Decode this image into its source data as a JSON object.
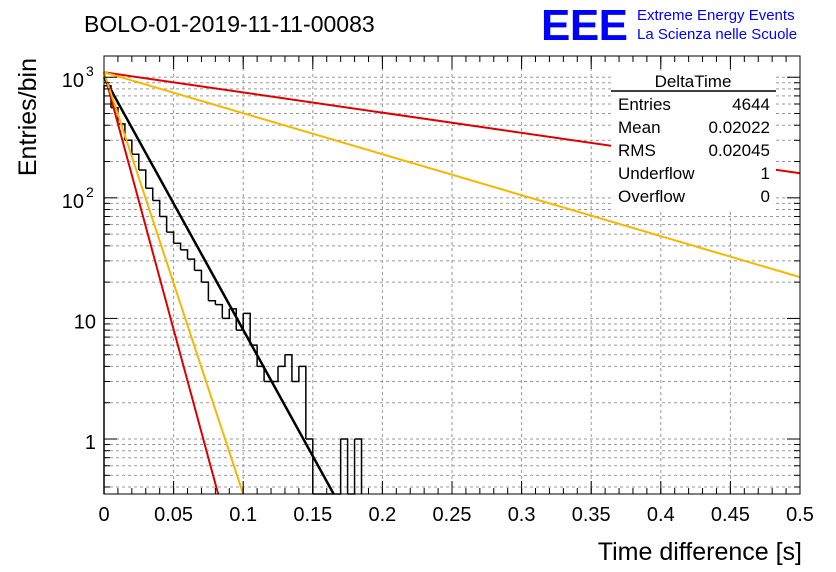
{
  "header": {
    "run_title": "BOLO-01-2019-11-11-00083",
    "logo_text": "EEE",
    "logo_line1": "Extreme Energy Events",
    "logo_line2": "La Scienza nelle Scuole"
  },
  "stats_box": {
    "title": "DeltaTime",
    "rows": [
      {
        "label": "Entries",
        "value": "4644"
      },
      {
        "label": "Mean",
        "value": "0.02022"
      },
      {
        "label": "RMS",
        "value": "0.02045"
      },
      {
        "label": "Underflow",
        "value": "1"
      },
      {
        "label": "Overflow",
        "value": "0"
      }
    ]
  },
  "colors": {
    "histogram": "#000000",
    "fit_black": "#000000",
    "curve_red": "#dd0000",
    "curve_orange": "#f5b800",
    "grid": "#9a9a9a",
    "logo_blue": "#0000ff"
  },
  "chart_data": {
    "type": "histogram",
    "xlabel": "Time difference [s]",
    "ylabel": "Entries/bin",
    "xlim": [
      0,
      0.5
    ],
    "ylim": [
      0.35,
      1500
    ],
    "y_scale": "log",
    "grid": true,
    "x_tick_labels": [
      "0",
      "0.05",
      "0.1",
      "0.15",
      "0.2",
      "0.25",
      "0.3",
      "0.35",
      "0.4",
      "0.45",
      "0.5"
    ],
    "y_tick_labels": [
      {
        "value": 1,
        "base": "1",
        "exp": ""
      },
      {
        "value": 10,
        "base": "10",
        "exp": ""
      },
      {
        "value": 100,
        "base": "10",
        "exp": "2"
      },
      {
        "value": 1000,
        "base": "10",
        "exp": "3"
      }
    ],
    "bin_width": 0.005,
    "bins": [
      {
        "x": 0.0,
        "count": 850
      },
      {
        "x": 0.005,
        "count": 560
      },
      {
        "x": 0.01,
        "count": 410
      },
      {
        "x": 0.015,
        "count": 300
      },
      {
        "x": 0.02,
        "count": 230
      },
      {
        "x": 0.025,
        "count": 170
      },
      {
        "x": 0.03,
        "count": 120
      },
      {
        "x": 0.035,
        "count": 95
      },
      {
        "x": 0.04,
        "count": 70
      },
      {
        "x": 0.045,
        "count": 52
      },
      {
        "x": 0.05,
        "count": 42
      },
      {
        "x": 0.055,
        "count": 37
      },
      {
        "x": 0.06,
        "count": 31
      },
      {
        "x": 0.065,
        "count": 25
      },
      {
        "x": 0.07,
        "count": 20
      },
      {
        "x": 0.075,
        "count": 14
      },
      {
        "x": 0.08,
        "count": 13
      },
      {
        "x": 0.085,
        "count": 10
      },
      {
        "x": 0.09,
        "count": 12
      },
      {
        "x": 0.095,
        "count": 8
      },
      {
        "x": 0.1,
        "count": 11
      },
      {
        "x": 0.105,
        "count": 6
      },
      {
        "x": 0.11,
        "count": 4
      },
      {
        "x": 0.115,
        "count": 3
      },
      {
        "x": 0.12,
        "count": 3
      },
      {
        "x": 0.125,
        "count": 4
      },
      {
        "x": 0.13,
        "count": 5
      },
      {
        "x": 0.135,
        "count": 3
      },
      {
        "x": 0.14,
        "count": 4
      },
      {
        "x": 0.145,
        "count": 1
      },
      {
        "x": 0.15,
        "count": 0
      },
      {
        "x": 0.155,
        "count": 0
      },
      {
        "x": 0.16,
        "count": 0
      },
      {
        "x": 0.165,
        "count": 0
      },
      {
        "x": 0.17,
        "count": 1
      },
      {
        "x": 0.175,
        "count": 0
      },
      {
        "x": 0.18,
        "count": 1
      }
    ],
    "curves": [
      {
        "color": "black",
        "points": [
          [
            0.0,
            1000
          ],
          [
            0.165,
            0.35
          ]
        ]
      },
      {
        "color": "red",
        "points": [
          [
            0.0,
            1100
          ],
          [
            0.5,
            160
          ]
        ]
      },
      {
        "color": "red",
        "points": [
          [
            0.0,
            1100
          ],
          [
            0.082,
            0.35
          ]
        ]
      },
      {
        "color": "orange",
        "points": [
          [
            0.0,
            1100
          ],
          [
            0.5,
            22
          ]
        ]
      },
      {
        "color": "orange",
        "points": [
          [
            0.0,
            1100
          ],
          [
            0.1,
            0.35
          ]
        ]
      }
    ]
  }
}
